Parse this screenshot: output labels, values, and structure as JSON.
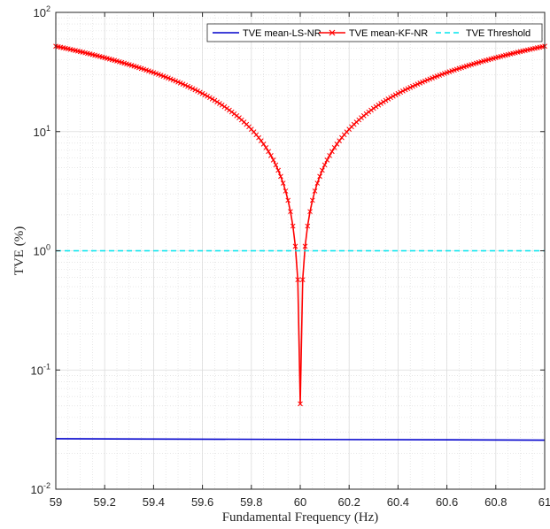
{
  "chart_data": {
    "type": "line",
    "title": "",
    "xlabel": "Fundamental Frequency (Hz)",
    "ylabel": "TVE (%)",
    "xlim": [
      59,
      61
    ],
    "ylim": [
      0.01,
      100
    ],
    "yscale": "log",
    "grid": true,
    "minor_grid": true,
    "legend_position": "top-right",
    "legend_orientation": "horizontal",
    "x_ticks": [
      "59",
      "59.2",
      "59.4",
      "59.6",
      "59.8",
      "60",
      "60.2",
      "60.4",
      "60.6",
      "60.8",
      "61"
    ],
    "y_ticks": [
      {
        "base": "10",
        "exp": "-2"
      },
      {
        "base": "10",
        "exp": "-1"
      },
      {
        "base": "10",
        "exp": "0"
      },
      {
        "base": "10",
        "exp": "1"
      },
      {
        "base": "10",
        "exp": "2"
      }
    ],
    "series": [
      {
        "name": "TVE mean-LS-NR",
        "color": "#0000cc",
        "style": "solid",
        "marker": "none",
        "x": [
          59,
          61
        ],
        "y": [
          0.0265,
          0.0258
        ]
      },
      {
        "name": "TVE mean-KF-NR",
        "color": "#ff0000",
        "style": "solid",
        "marker": "x",
        "model": "abs-linear-around-minimum",
        "x_range": [
          59,
          61
        ],
        "step": 0.01,
        "minimum_x": 60,
        "minimum_y": 0.052,
        "slope_per_hz": 52
      },
      {
        "name": "TVE Threshold",
        "color": "#00e5ee",
        "style": "dashed",
        "marker": "none",
        "x": [
          59,
          61
        ],
        "y": [
          1,
          1
        ]
      }
    ]
  }
}
